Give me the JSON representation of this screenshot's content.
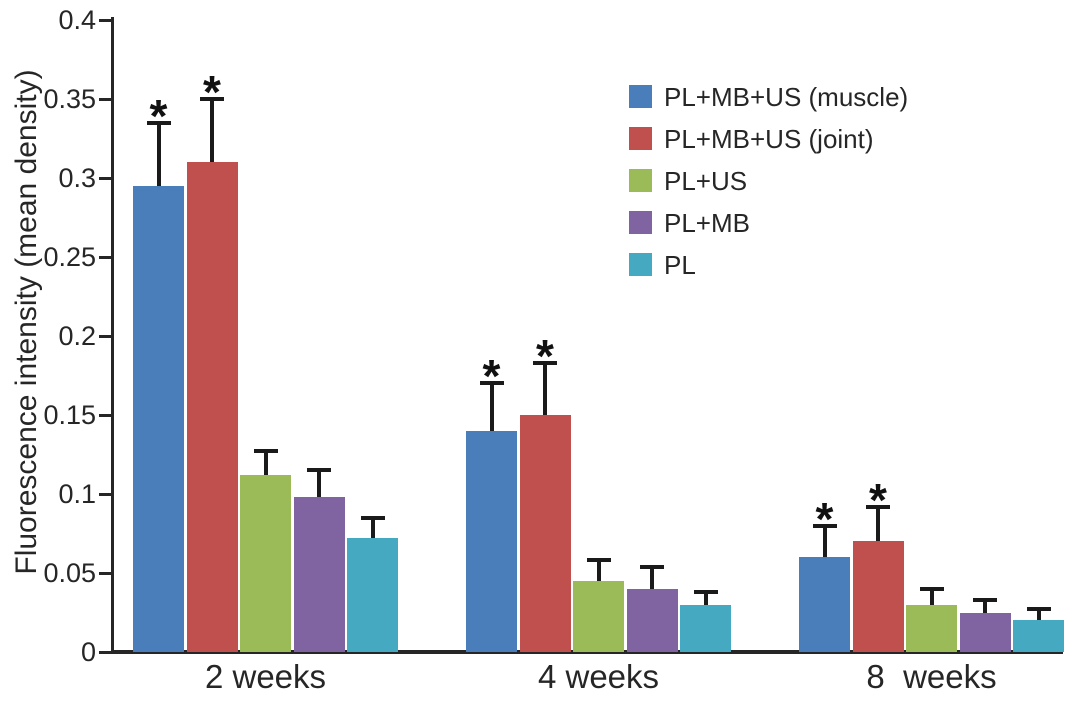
{
  "chart_data": {
    "type": "bar",
    "title": "",
    "xlabel": "",
    "ylabel": "Fluorescence intensity (mean density)",
    "ylim": [
      0,
      0.4
    ],
    "yticks": [
      0,
      0.05,
      0.1,
      0.15,
      0.2,
      0.25,
      0.3,
      0.35,
      0.4
    ],
    "ytick_labels": [
      "0",
      "0.05",
      "0.1",
      "0.15",
      "0.2",
      "0.25",
      "0.3",
      "0.35",
      "0.4"
    ],
    "categories": [
      "2 weeks",
      "4 weeks",
      "8  weeks"
    ],
    "series": [
      {
        "name": "PL+MB+US (muscle)",
        "color": "#4A7EBB",
        "values": [
          0.295,
          0.14,
          0.06
        ],
        "errors": [
          0.04,
          0.03,
          0.02
        ],
        "significant": [
          true,
          true,
          true
        ]
      },
      {
        "name": "PL+MB+US (joint)",
        "color": "#C0504D",
        "values": [
          0.31,
          0.15,
          0.07
        ],
        "errors": [
          0.04,
          0.033,
          0.022
        ],
        "significant": [
          true,
          true,
          true
        ]
      },
      {
        "name": "PL+US",
        "color": "#9BBB59",
        "values": [
          0.112,
          0.045,
          0.03
        ],
        "errors": [
          0.015,
          0.013,
          0.01
        ],
        "significant": [
          false,
          false,
          false
        ]
      },
      {
        "name": "PL+MB",
        "color": "#8064A2",
        "values": [
          0.098,
          0.04,
          0.025
        ],
        "errors": [
          0.017,
          0.014,
          0.008
        ],
        "significant": [
          false,
          false,
          false
        ]
      },
      {
        "name": "PL",
        "color": "#45A9C1",
        "values": [
          0.072,
          0.03,
          0.02
        ],
        "errors": [
          0.013,
          0.008,
          0.007
        ],
        "significant": [
          false,
          false,
          false
        ]
      }
    ],
    "significance_marker": "*",
    "error_bar_direction": "upper",
    "legend_position": "upper-right",
    "grid": false,
    "axis_color": "#262626",
    "background_color": "#ffffff"
  }
}
